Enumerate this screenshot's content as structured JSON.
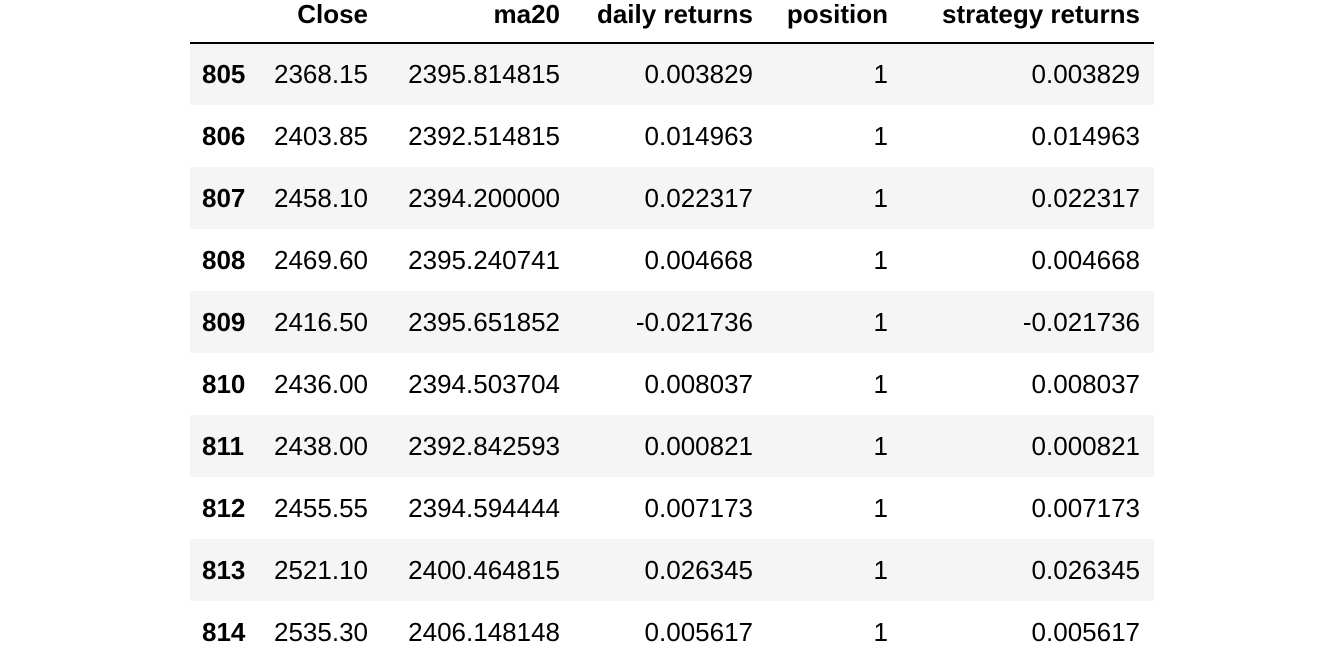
{
  "table": {
    "columns": [
      "",
      "Close",
      "ma20",
      "daily returns",
      "position",
      "strategy returns"
    ],
    "rows": [
      {
        "index": "805",
        "close": "2368.15",
        "ma20": "2395.814815",
        "daily_returns": "0.003829",
        "position": "1",
        "strategy_returns": "0.003829"
      },
      {
        "index": "806",
        "close": "2403.85",
        "ma20": "2392.514815",
        "daily_returns": "0.014963",
        "position": "1",
        "strategy_returns": "0.014963"
      },
      {
        "index": "807",
        "close": "2458.10",
        "ma20": "2394.200000",
        "daily_returns": "0.022317",
        "position": "1",
        "strategy_returns": "0.022317"
      },
      {
        "index": "808",
        "close": "2469.60",
        "ma20": "2395.240741",
        "daily_returns": "0.004668",
        "position": "1",
        "strategy_returns": "0.004668"
      },
      {
        "index": "809",
        "close": "2416.50",
        "ma20": "2395.651852",
        "daily_returns": "-0.021736",
        "position": "1",
        "strategy_returns": "-0.021736"
      },
      {
        "index": "810",
        "close": "2436.00",
        "ma20": "2394.503704",
        "daily_returns": "0.008037",
        "position": "1",
        "strategy_returns": "0.008037"
      },
      {
        "index": "811",
        "close": "2438.00",
        "ma20": "2392.842593",
        "daily_returns": "0.000821",
        "position": "1",
        "strategy_returns": "0.000821"
      },
      {
        "index": "812",
        "close": "2455.55",
        "ma20": "2394.594444",
        "daily_returns": "0.007173",
        "position": "1",
        "strategy_returns": "0.007173"
      },
      {
        "index": "813",
        "close": "2521.10",
        "ma20": "2400.464815",
        "daily_returns": "0.026345",
        "position": "1",
        "strategy_returns": "0.026345"
      },
      {
        "index": "814",
        "close": "2535.30",
        "ma20": "2406.148148",
        "daily_returns": "0.005617",
        "position": "1",
        "strategy_returns": "0.005617"
      }
    ]
  }
}
